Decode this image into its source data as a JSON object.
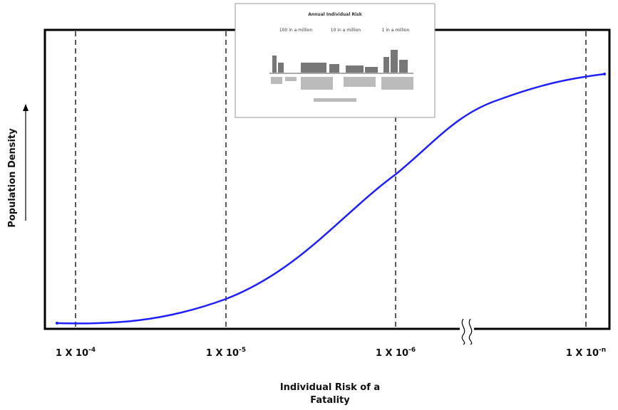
{
  "y_axis": {
    "label": "Population Density"
  },
  "x_axis": {
    "label_lines": [
      "Individual Risk of a",
      "Fatality"
    ],
    "ticks": [
      {
        "base": "1 X 10",
        "exp": "-4"
      },
      {
        "base": "1 X 10",
        "exp": "-5"
      },
      {
        "base": "1 X 10",
        "exp": "-6"
      },
      {
        "base": "1 X 10",
        "exp": "-n"
      }
    ]
  },
  "inset": {
    "title": "Annual Individual Risk",
    "levels": [
      "100 in a million",
      "10 in a million",
      "1 in a million"
    ]
  }
}
